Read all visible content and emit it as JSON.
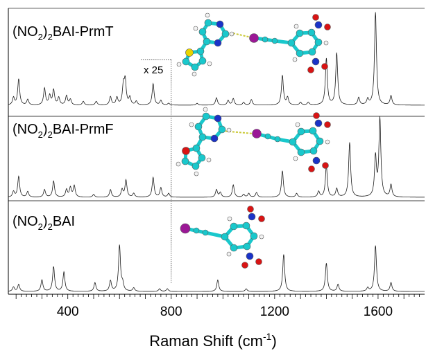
{
  "chart_data": {
    "type": "line",
    "xlabel": "Raman Shift (cm",
    "xlabel_sup": "-1",
    "xlabel_close": ")",
    "xlim": [
      170,
      1780
    ],
    "xticks": [
      400,
      800,
      1200,
      1600
    ],
    "scale_note": "x 25",
    "scale_boundary": 800,
    "series": [
      {
        "name": "(NO2)2BAI-PrmT",
        "label_main": "(NO",
        "label_sub": "2",
        "label_mid": ")",
        "label_sub2": "2",
        "label_tail": "BAI-PrmT",
        "peaks": [
          [
            190,
            0.08
          ],
          [
            210,
            0.28
          ],
          [
            245,
            0.06
          ],
          [
            310,
            0.18
          ],
          [
            330,
            0.1
          ],
          [
            345,
            0.16
          ],
          [
            365,
            0.08
          ],
          [
            395,
            0.1
          ],
          [
            410,
            0.06
          ],
          [
            460,
            0.04
          ],
          [
            510,
            0.04
          ],
          [
            565,
            0.09
          ],
          [
            590,
            0.08
          ],
          [
            615,
            0.2
          ],
          [
            622,
            0.25
          ],
          [
            640,
            0.08
          ],
          [
            665,
            0.04
          ],
          [
            730,
            0.23
          ],
          [
            760,
            0.05
          ],
          [
            790,
            0.02
          ],
          [
            900,
            0.02
          ],
          [
            975,
            0.08
          ],
          [
            1020,
            0.05
          ],
          [
            1040,
            0.07
          ],
          [
            1080,
            0.03
          ],
          [
            1110,
            0.06
          ],
          [
            1230,
            0.32
          ],
          [
            1250,
            0.08
          ],
          [
            1300,
            0.03
          ],
          [
            1330,
            0.03
          ],
          [
            1400,
            0.5
          ],
          [
            1440,
            0.56
          ],
          [
            1525,
            0.08
          ],
          [
            1560,
            0.06
          ],
          [
            1590,
            1.0
          ],
          [
            1650,
            0.1
          ]
        ]
      },
      {
        "name": "(NO2)2BAI-PrmF",
        "label_main": "(NO",
        "label_sub": "2",
        "label_mid": ")",
        "label_sub2": "2",
        "label_tail": "BAI-PrmF",
        "peaks": [
          [
            190,
            0.06
          ],
          [
            210,
            0.22
          ],
          [
            245,
            0.06
          ],
          [
            310,
            0.08
          ],
          [
            345,
            0.17
          ],
          [
            395,
            0.08
          ],
          [
            410,
            0.1
          ],
          [
            425,
            0.12
          ],
          [
            500,
            0.03
          ],
          [
            565,
            0.08
          ],
          [
            610,
            0.08
          ],
          [
            625,
            0.18
          ],
          [
            655,
            0.04
          ],
          [
            730,
            0.21
          ],
          [
            760,
            0.1
          ],
          [
            790,
            0.04
          ],
          [
            975,
            0.08
          ],
          [
            990,
            0.05
          ],
          [
            1040,
            0.13
          ],
          [
            1080,
            0.03
          ],
          [
            1100,
            0.04
          ],
          [
            1130,
            0.05
          ],
          [
            1230,
            0.28
          ],
          [
            1285,
            0.04
          ],
          [
            1370,
            0.06
          ],
          [
            1400,
            0.33
          ],
          [
            1440,
            0.09
          ],
          [
            1490,
            0.58
          ],
          [
            1590,
            0.42
          ],
          [
            1607,
            0.83
          ],
          [
            1650,
            0.13
          ]
        ]
      },
      {
        "name": "(NO2)2BAI",
        "label_main": "(NO",
        "label_sub": "2",
        "label_mid": ")",
        "label_sub2": "2",
        "label_tail": "BAI",
        "peaks": [
          [
            190,
            0.05
          ],
          [
            210,
            0.08
          ],
          [
            300,
            0.13
          ],
          [
            345,
            0.28
          ],
          [
            385,
            0.22
          ],
          [
            505,
            0.1
          ],
          [
            565,
            0.12
          ],
          [
            600,
            0.52
          ],
          [
            612,
            0.08
          ],
          [
            655,
            0.04
          ],
          [
            755,
            0.03
          ],
          [
            785,
            0.03
          ],
          [
            980,
            0.13
          ],
          [
            1090,
            0.03
          ],
          [
            1235,
            0.42
          ],
          [
            1400,
            0.32
          ],
          [
            1445,
            0.08
          ],
          [
            1560,
            0.04
          ],
          [
            1590,
            0.52
          ],
          [
            1650,
            0.1
          ]
        ]
      }
    ],
    "colors": {
      "line": "#1a1a1a",
      "frame": "#000000",
      "divider": "#555555",
      "carbon": "#19c8cc",
      "hydrogen": "#f2f2f2",
      "nitrogen": "#1a33c8",
      "oxygen": "#d81414",
      "iodine": "#9b1896",
      "sulfur": "#e8d400",
      "halogen_bond": "#c9c832"
    }
  },
  "molecules": [
    {
      "name": "prmt-molecule"
    },
    {
      "name": "prmf-molecule"
    },
    {
      "name": "bai-molecule"
    }
  ]
}
